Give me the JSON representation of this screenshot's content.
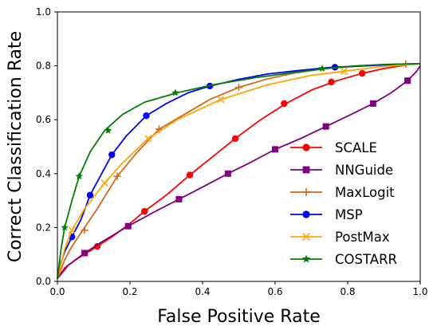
{
  "chart_data": {
    "type": "line",
    "title": "",
    "xlabel": "False Positive Rate",
    "ylabel": "Correct Classification Rate",
    "xlim": [
      0.0,
      1.0
    ],
    "ylim": [
      0.0,
      1.0
    ],
    "xticks": [
      "0.0",
      "0.2",
      "0.4",
      "0.6",
      "0.8",
      "1.0"
    ],
    "yticks": [
      "0.0",
      "0.2",
      "0.4",
      "0.6",
      "0.8",
      "1.0"
    ],
    "grid": false,
    "legend_position": "lower-right",
    "series": [
      {
        "name": "SCALE",
        "color": "#ff0000",
        "marker": "circle",
        "x": [
          0.0,
          0.02,
          0.05,
          0.08,
          0.11,
          0.15,
          0.2,
          0.24,
          0.3,
          0.365,
          0.43,
          0.49,
          0.56,
          0.63,
          0.7,
          0.77,
          0.84,
          0.9,
          0.96,
          1.0
        ],
        "y": [
          0.01,
          0.05,
          0.08,
          0.105,
          0.13,
          0.165,
          0.215,
          0.26,
          0.32,
          0.395,
          0.465,
          0.53,
          0.6,
          0.66,
          0.71,
          0.745,
          0.772,
          0.79,
          0.803,
          0.808
        ],
        "marker_x": [
          0.11,
          0.24,
          0.365,
          0.49,
          0.625,
          0.755,
          0.84
        ],
        "marker_y": [
          0.13,
          0.26,
          0.395,
          0.53,
          0.66,
          0.74,
          0.772
        ]
      },
      {
        "name": "NNGuide",
        "color": "#800080",
        "marker": "square",
        "x": [
          0.0,
          0.03,
          0.075,
          0.12,
          0.195,
          0.27,
          0.335,
          0.4,
          0.47,
          0.53,
          0.6,
          0.67,
          0.74,
          0.81,
          0.87,
          0.92,
          0.965,
          0.99,
          1.0
        ],
        "y": [
          0.01,
          0.06,
          0.105,
          0.145,
          0.205,
          0.26,
          0.305,
          0.35,
          0.4,
          0.44,
          0.49,
          0.53,
          0.575,
          0.62,
          0.66,
          0.7,
          0.745,
          0.78,
          0.8
        ],
        "marker_x": [
          0.075,
          0.195,
          0.335,
          0.47,
          0.6,
          0.74,
          0.87,
          0.965
        ],
        "marker_y": [
          0.105,
          0.205,
          0.305,
          0.4,
          0.49,
          0.575,
          0.66,
          0.745
        ]
      },
      {
        "name": "MaxLogit",
        "color": "#d2691e",
        "marker": "plus",
        "x": [
          0.0,
          0.02,
          0.04,
          0.075,
          0.11,
          0.165,
          0.22,
          0.28,
          0.35,
          0.42,
          0.5,
          0.58,
          0.66,
          0.74,
          0.82,
          0.9,
          0.96,
          1.0
        ],
        "y": [
          0.01,
          0.08,
          0.13,
          0.2,
          0.27,
          0.39,
          0.48,
          0.565,
          0.62,
          0.675,
          0.72,
          0.752,
          0.775,
          0.79,
          0.798,
          0.805,
          0.807,
          0.808
        ],
        "marker_x": [
          0.075,
          0.165,
          0.28,
          0.5,
          0.96
        ],
        "marker_y": [
          0.19,
          0.39,
          0.565,
          0.72,
          0.807
        ]
      },
      {
        "name": "MSP",
        "color": "#0000ff",
        "marker": "circle",
        "x": [
          0.0,
          0.01,
          0.02,
          0.04,
          0.065,
          0.09,
          0.12,
          0.15,
          0.19,
          0.245,
          0.3,
          0.36,
          0.42,
          0.5,
          0.58,
          0.66,
          0.76,
          0.85,
          0.93,
          1.0
        ],
        "y": [
          0.01,
          0.07,
          0.11,
          0.165,
          0.23,
          0.32,
          0.395,
          0.47,
          0.54,
          0.615,
          0.66,
          0.7,
          0.725,
          0.75,
          0.77,
          0.782,
          0.795,
          0.8,
          0.805,
          0.808
        ],
        "marker_x": [
          0.04,
          0.09,
          0.15,
          0.245,
          0.42,
          0.765
        ],
        "marker_y": [
          0.165,
          0.32,
          0.47,
          0.615,
          0.725,
          0.795
        ]
      },
      {
        "name": "PostMax",
        "color": "#ffa500",
        "marker": "x",
        "x": [
          0.0,
          0.02,
          0.04,
          0.075,
          0.11,
          0.13,
          0.18,
          0.25,
          0.33,
          0.45,
          0.58,
          0.7,
          0.79,
          0.88,
          0.95,
          1.0
        ],
        "y": [
          0.01,
          0.12,
          0.19,
          0.27,
          0.33,
          0.365,
          0.44,
          0.53,
          0.6,
          0.675,
          0.73,
          0.765,
          0.78,
          0.795,
          0.803,
          0.808
        ],
        "marker_x": [
          0.04,
          0.13,
          0.25,
          0.45,
          0.79
        ],
        "marker_y": [
          0.19,
          0.365,
          0.53,
          0.675,
          0.78
        ]
      },
      {
        "name": "COSTARR",
        "color": "#008000",
        "marker": "star",
        "x": [
          0.0,
          0.01,
          0.02,
          0.04,
          0.06,
          0.09,
          0.13,
          0.18,
          0.24,
          0.33,
          0.43,
          0.55,
          0.65,
          0.74,
          0.82,
          0.9,
          0.96,
          1.0
        ],
        "y": [
          0.01,
          0.12,
          0.2,
          0.3,
          0.39,
          0.48,
          0.56,
          0.62,
          0.665,
          0.7,
          0.73,
          0.757,
          0.775,
          0.79,
          0.8,
          0.805,
          0.807,
          0.808
        ],
        "marker_x": [
          0.02,
          0.06,
          0.14,
          0.325,
          0.73
        ],
        "marker_y": [
          0.2,
          0.39,
          0.56,
          0.7,
          0.79
        ]
      }
    ]
  }
}
